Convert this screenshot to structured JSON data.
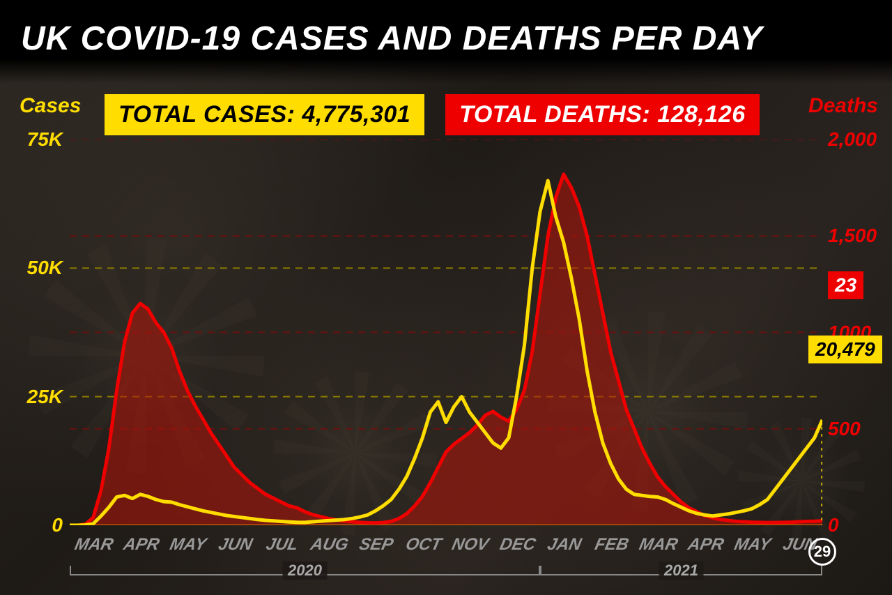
{
  "title": "UK COVID-19 CASES AND DEATHS PER DAY",
  "total_cases_label": "TOTAL CASES: 4,775,301",
  "total_deaths_label": "TOTAL DEATHS: 128,126",
  "left_axis_label": "Cases",
  "right_axis_label": "Deaths",
  "left_axis": {
    "min": 0,
    "max": 75000,
    "ticks": [
      0,
      25000,
      50000,
      75000
    ],
    "tick_labels": [
      "0",
      "25K",
      "50K",
      "75K"
    ],
    "color": "#ffdd00"
  },
  "right_axis": {
    "min": 0,
    "max": 2000,
    "ticks": [
      0,
      500,
      1000,
      1500,
      2000
    ],
    "tick_labels": [
      "0",
      "500",
      "1000",
      "1,500",
      "2,000"
    ],
    "color": "#ee0000"
  },
  "months": [
    "MAR",
    "APR",
    "MAY",
    "JUN",
    "JUL",
    "AUG",
    "SEP",
    "OCT",
    "NOV",
    "DEC",
    "JAN",
    "FEB",
    "MAR",
    "APR",
    "MAY",
    "JUN"
  ],
  "year_brackets": [
    {
      "label": "2020",
      "start": 0,
      "end": 10
    },
    {
      "label": "2021",
      "start": 10,
      "end": 16
    }
  ],
  "end_day": "29",
  "callout_deaths": "23",
  "callout_cases": "20,479",
  "colors": {
    "cases_line": "#ffdd00",
    "deaths_line": "#ee0000",
    "deaths_fill": "rgba(180,20,10,0.55)",
    "grid_cases": "#8a7a00",
    "grid_deaths": "#6a1010",
    "background": "#1a1a1a",
    "title_color": "#ffffff",
    "month_color": "#999999"
  },
  "title_fontsize": 48,
  "badge_fontsize": 34,
  "axis_label_fontsize": 30,
  "tick_fontsize": 28,
  "month_fontsize": 24,
  "line_width_cases": 5,
  "line_width_deaths": 5,
  "chart": {
    "type": "dual-axis-line",
    "cases": [
      0,
      0,
      50,
      300,
      1800,
      3500,
      5500,
      5800,
      5200,
      6000,
      5600,
      5000,
      4600,
      4500,
      4000,
      3600,
      3200,
      2800,
      2500,
      2200,
      1900,
      1700,
      1500,
      1300,
      1100,
      950,
      850,
      750,
      650,
      580,
      560,
      680,
      800,
      900,
      1000,
      1100,
      1300,
      1600,
      2000,
      2800,
      3800,
      5000,
      7000,
      9500,
      13000,
      17000,
      22000,
      24000,
      20000,
      23000,
      25000,
      22000,
      20000,
      18000,
      16000,
      15000,
      17000,
      25000,
      35000,
      50000,
      61000,
      67000,
      60000,
      55000,
      48000,
      40000,
      30000,
      22000,
      16000,
      12000,
      9000,
      7000,
      6000,
      5800,
      5600,
      5500,
      5000,
      4200,
      3500,
      2800,
      2300,
      2000,
      1800,
      2000,
      2200,
      2500,
      2800,
      3200,
      4000,
      5000,
      7000,
      9000,
      11000,
      13000,
      15000,
      17000,
      20479
    ],
    "deaths": [
      0,
      0,
      5,
      40,
      180,
      400,
      700,
      950,
      1100,
      1150,
      1120,
      1050,
      1000,
      920,
      800,
      700,
      620,
      550,
      480,
      420,
      360,
      300,
      260,
      220,
      190,
      160,
      140,
      120,
      100,
      90,
      70,
      55,
      45,
      35,
      28,
      22,
      18,
      15,
      13,
      12,
      14,
      20,
      35,
      60,
      100,
      150,
      220,
      300,
      380,
      420,
      450,
      480,
      520,
      570,
      590,
      560,
      540,
      600,
      700,
      900,
      1200,
      1500,
      1700,
      1820,
      1750,
      1650,
      1500,
      1300,
      1100,
      900,
      750,
      600,
      500,
      400,
      320,
      250,
      200,
      160,
      120,
      90,
      70,
      50,
      38,
      30,
      25,
      20,
      18,
      16,
      15,
      14,
      14,
      15,
      16,
      18,
      20,
      21,
      23
    ]
  }
}
